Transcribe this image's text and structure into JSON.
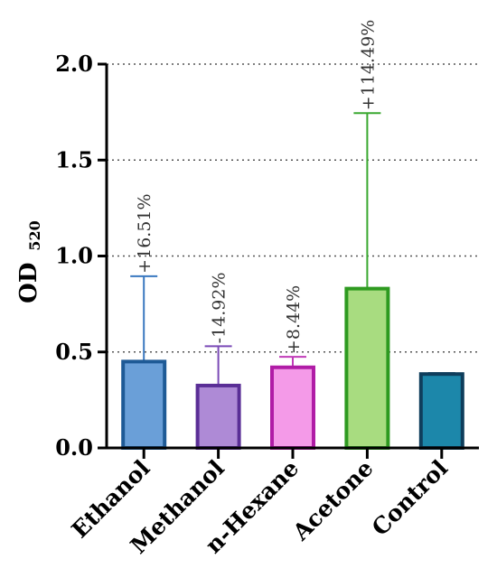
{
  "chart_data": {
    "type": "bar",
    "title": "",
    "xlabel": "",
    "ylabel": "OD",
    "ylabel_subscript": "520",
    "ylim": [
      0,
      2.0
    ],
    "yticks": [
      "0.0",
      "0.5",
      "1.0",
      "1.5",
      "2.0"
    ],
    "ytick_values": [
      0,
      0.5,
      1.0,
      1.5,
      2.0
    ],
    "grid": "horizontal dotted at 0.5, 1.0, 1.5",
    "categories": [
      "Ethanol",
      "Methanol",
      "n-Hexane",
      "Acetone",
      "Control"
    ],
    "values": [
      0.45,
      0.325,
      0.42,
      0.83,
      0.385
    ],
    "error_upper": [
      0.895,
      0.53,
      0.475,
      1.745,
      0.39
    ],
    "annotations": [
      "+16.51%",
      "-14.92%",
      "+8.44%",
      "+114.49%",
      ""
    ],
    "fill_colors": [
      "#6a9fd8",
      "#ae8ad6",
      "#f49ae8",
      "#a8dc80",
      "#1c87aa"
    ],
    "edge_colors": [
      "#1e5a96",
      "#5a2e96",
      "#b01ca6",
      "#2e9a20",
      "#0f3e5c"
    ],
    "error_colors": [
      "#3a78c0",
      "#7a4ab6",
      "#c03cb8",
      "#3aa830",
      "#0f3e5c"
    ]
  }
}
